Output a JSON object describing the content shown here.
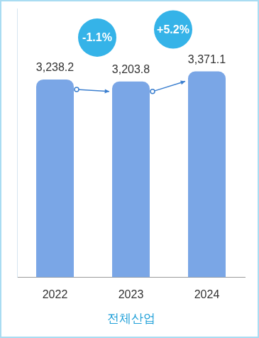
{
  "chart_data": {
    "type": "bar",
    "categories": [
      "2022",
      "2023",
      "2024"
    ],
    "values": [
      3238.2,
      3203.8,
      3371.1
    ],
    "value_labels": [
      "3,238.2",
      "3,203.8",
      "3,371.1"
    ],
    "data_labels": true,
    "annotations": [
      "-1.1%",
      "+5.2%"
    ],
    "xlabel": "전체산업",
    "color": "#7aa6e6",
    "ylim": [
      0,
      4400
    ],
    "grid": false,
    "tick_labels": "x"
  }
}
